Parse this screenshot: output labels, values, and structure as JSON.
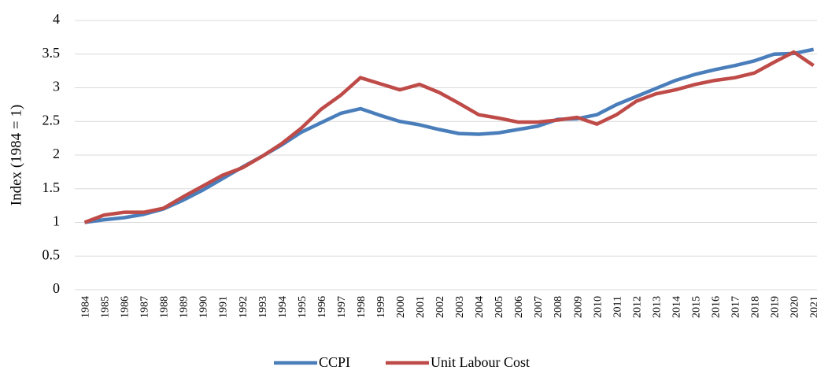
{
  "chart_data": {
    "type": "line",
    "y_label": "Index (1984 = 1)",
    "categories": [
      "1984",
      "1985",
      "1986",
      "1987",
      "1988",
      "1989",
      "1990",
      "1991",
      "1992",
      "1993",
      "1994",
      "1995",
      "1996",
      "1997",
      "1998",
      "1999",
      "2000",
      "2001",
      "2002",
      "2003",
      "2004",
      "2005",
      "2006",
      "2007",
      "2008",
      "2009",
      "2010",
      "2011",
      "2012",
      "2013",
      "2014",
      "2015",
      "2016",
      "2017",
      "2018",
      "2019",
      "2020",
      "2021"
    ],
    "series": [
      {
        "name": "CCPI",
        "color": "#4a7ebb",
        "values": [
          1.0,
          1.04,
          1.07,
          1.12,
          1.2,
          1.33,
          1.48,
          1.65,
          1.82,
          1.98,
          2.15,
          2.34,
          2.48,
          2.62,
          2.69,
          2.59,
          2.5,
          2.45,
          2.38,
          2.32,
          2.31,
          2.33,
          2.38,
          2.43,
          2.53,
          2.54,
          2.6,
          2.75,
          2.87,
          2.99,
          3.11,
          3.2,
          3.27,
          3.33,
          3.4,
          3.5,
          3.51,
          3.57
        ]
      },
      {
        "name": "Unit Labour Cost",
        "color": "#be4b48",
        "values": [
          1.0,
          1.11,
          1.15,
          1.15,
          1.21,
          1.38,
          1.54,
          1.7,
          1.81,
          1.98,
          2.17,
          2.4,
          2.68,
          2.89,
          3.15,
          3.06,
          2.97,
          3.05,
          2.93,
          2.77,
          2.6,
          2.55,
          2.49,
          2.49,
          2.52,
          2.56,
          2.46,
          2.6,
          2.8,
          2.91,
          2.97,
          3.05,
          3.11,
          3.15,
          3.22,
          3.38,
          3.53,
          3.33
        ]
      }
    ],
    "ylim": [
      0,
      4
    ],
    "yticks": [
      0,
      0.5,
      1,
      1.5,
      2,
      2.5,
      3,
      3.5,
      4
    ],
    "grid": true
  }
}
